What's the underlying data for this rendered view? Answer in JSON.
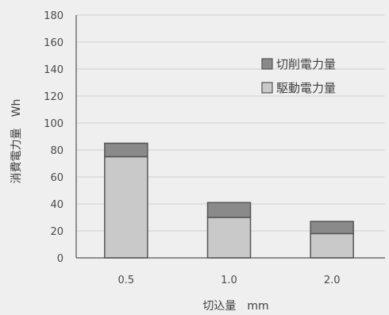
{
  "chart_data": {
    "type": "bar",
    "stacked": true,
    "categories": [
      "0.5",
      "1.0",
      "2.0"
    ],
    "series": [
      {
        "name": "駆動電力量",
        "values": [
          75,
          30,
          18
        ],
        "color": "#c9c9c9"
      },
      {
        "name": "切削電力量",
        "values": [
          10,
          11,
          9
        ],
        "color": "#8a8a8a"
      }
    ],
    "xlabel": "切込量　mm",
    "ylabel": "消費電力量　Wh",
    "ylim": [
      0,
      180
    ],
    "yticks": [
      0,
      20,
      40,
      60,
      80,
      100,
      120,
      140,
      160,
      180
    ],
    "grid": true,
    "legend_position": "right",
    "legend_order": [
      "切削電力量",
      "駆動電力量"
    ]
  }
}
